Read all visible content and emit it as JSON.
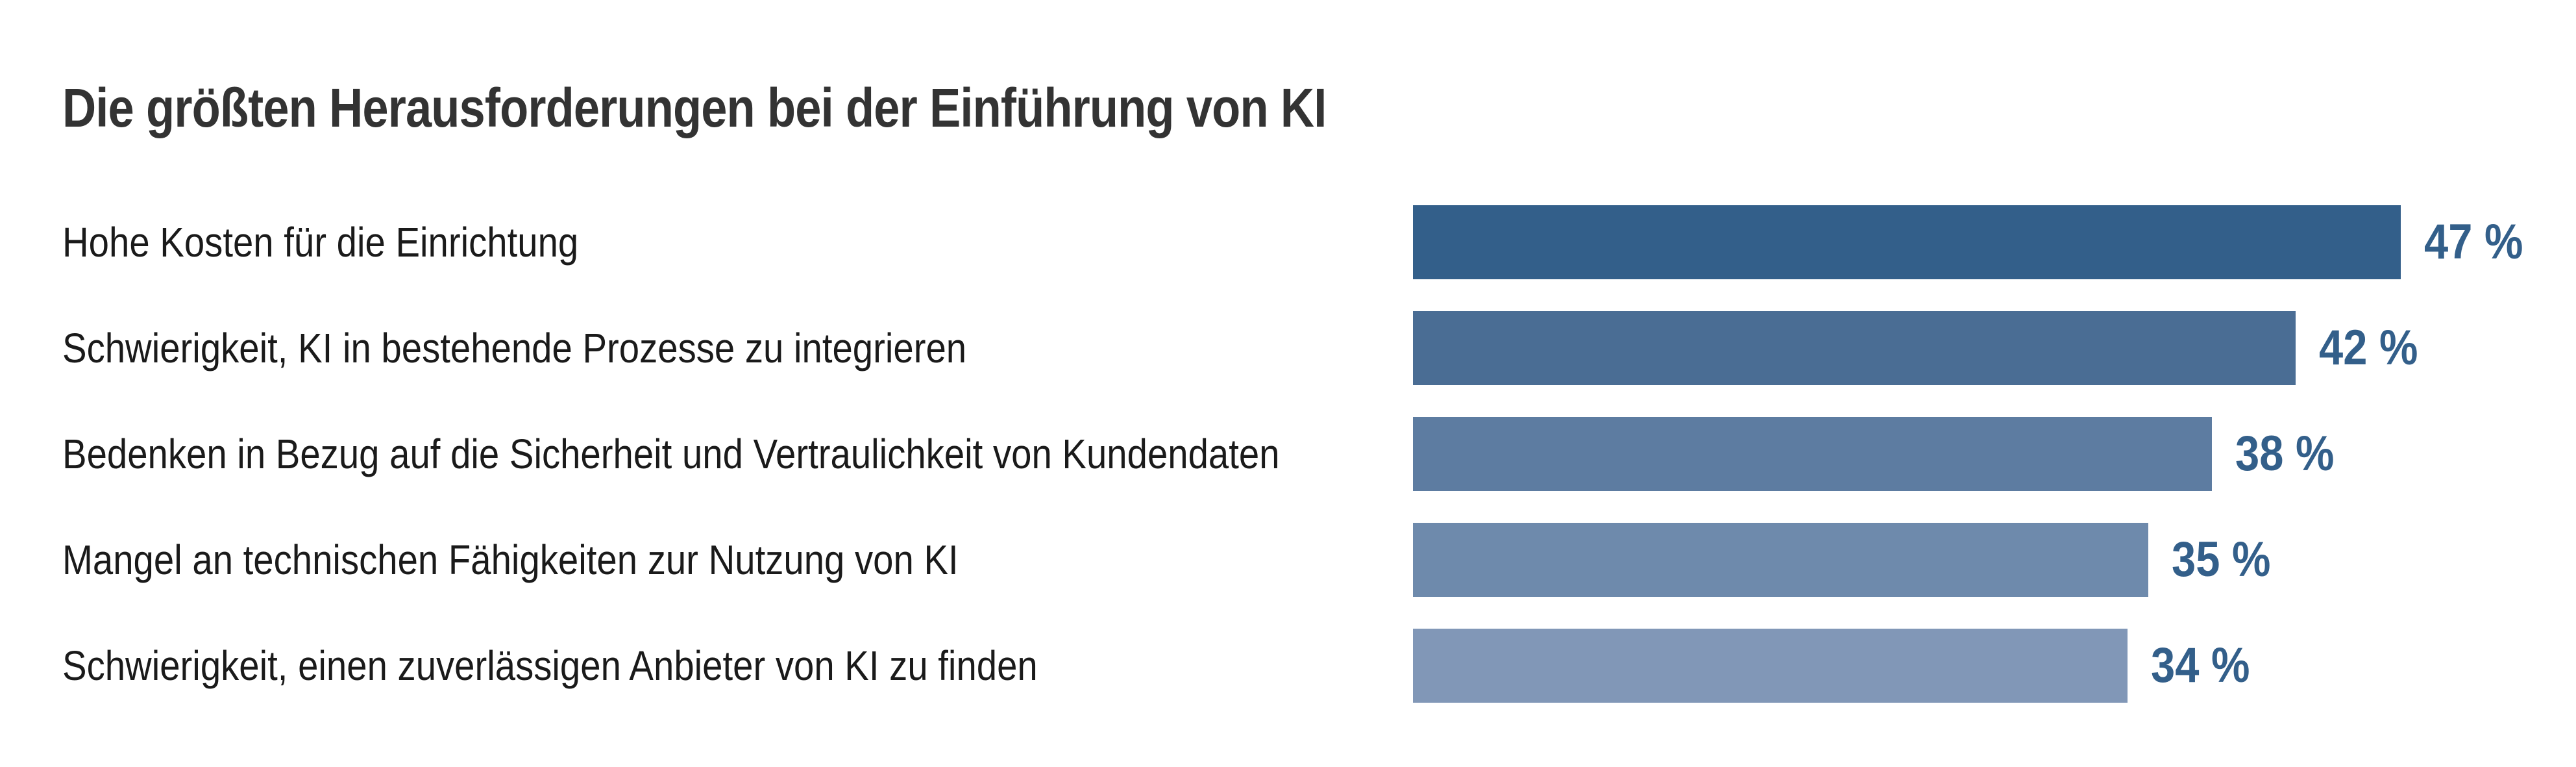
{
  "chart_data": {
    "type": "bar",
    "orientation": "horizontal",
    "title": "Die größten Herausforderungen bei der Einführung von KI",
    "categories": [
      "Hohe Kosten für die Einrichtung",
      "Schwierigkeit, KI in bestehende Prozesse zu integrieren",
      "Bedenken in Bezug auf die Sicherheit und Vertraulichkeit von Kundendaten",
      "Mangel an technischen Fähigkeiten zur Nutzung von KI",
      "Schwierigkeit, einen zuverlässigen Anbieter von KI zu finden"
    ],
    "values": [
      47,
      42,
      38,
      35,
      34
    ],
    "value_labels": [
      "47 %",
      "42 %",
      "38 %",
      "35 %",
      "34 %"
    ],
    "unit": "%",
    "grid": false,
    "legend": "none",
    "colors": [
      "#335f8a",
      "#4a6d94",
      "#5d7ca1",
      "#6e8aac",
      "#8197b7"
    ],
    "value_color": "#335f8a"
  }
}
